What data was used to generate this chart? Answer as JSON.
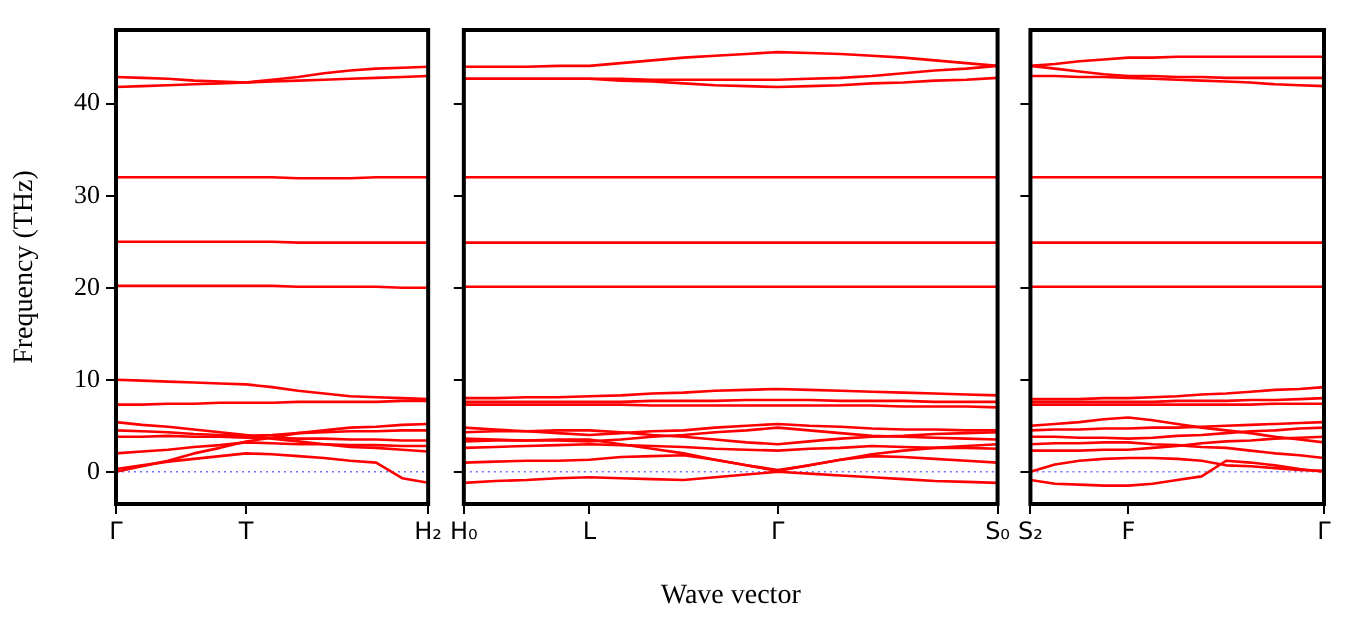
{
  "chart_data": [
    {
      "type": "line",
      "ylabel": "Frequency (THz)",
      "categories": [
        "Γ",
        null,
        null,
        null,
        null,
        "T",
        null,
        null,
        null,
        null,
        null,
        null,
        "H₂"
      ],
      "ylim": [
        -3.5,
        48
      ],
      "yticks": [
        0,
        10,
        20,
        30,
        40
      ],
      "marker": "none",
      "ref_lines": [
        {
          "axis": "y",
          "value": 0,
          "label": null,
          "color": "#6f6fff",
          "line_style": "dotted"
        }
      ],
      "series": [
        {
          "color": "#ff0000",
          "values": [
            42.9,
            42.8,
            42.7,
            42.5,
            42.4,
            42.3,
            42.6,
            42.9,
            43.3,
            43.6,
            43.8,
            43.9,
            44.0
          ]
        },
        {
          "color": "#ff0000",
          "values": [
            41.8,
            41.9,
            42.0,
            42.1,
            42.2,
            42.3,
            42.4,
            42.5,
            42.6,
            42.7,
            42.8,
            42.9,
            43.0
          ]
        },
        {
          "color": "#ff0000",
          "values": [
            32,
            32,
            32,
            32,
            32,
            32,
            32,
            31.9,
            31.9,
            31.9,
            32,
            32,
            32
          ]
        },
        {
          "color": "#ff0000",
          "values": [
            25,
            25,
            25,
            25,
            25,
            25,
            25,
            24.9,
            24.9,
            24.9,
            24.9,
            24.9,
            24.9
          ]
        },
        {
          "color": "#ff0000",
          "values": [
            20.2,
            20.2,
            20.2,
            20.2,
            20.2,
            20.2,
            20.2,
            20.1,
            20.1,
            20.1,
            20.1,
            20.0,
            20.0
          ]
        },
        {
          "color": "#ff0000",
          "values": [
            10,
            9.9,
            9.8,
            9.7,
            9.6,
            9.5,
            9.2,
            8.8,
            8.5,
            8.2,
            8.1,
            8.0,
            7.9
          ]
        },
        {
          "color": "#ff0000",
          "values": [
            7.3,
            7.3,
            7.4,
            7.4,
            7.5,
            7.5,
            7.5,
            7.6,
            7.6,
            7.6,
            7.6,
            7.7,
            7.7
          ]
        },
        {
          "color": "#ff0000",
          "values": [
            0,
            0.6,
            1.2,
            2.0,
            2.6,
            3.3,
            3.7,
            4.2,
            4.5,
            4.8,
            4.9,
            5.1,
            5.2
          ]
        },
        {
          "color": "#ff0000",
          "values": [
            5.4,
            5.1,
            4.9,
            4.6,
            4.3,
            4.0,
            3.6,
            3.3,
            3.0,
            2.7,
            2.6,
            2.4,
            2.2
          ]
        },
        {
          "color": "#ff0000",
          "values": [
            4.5,
            4.4,
            4.3,
            4.1,
            4.0,
            3.9,
            4.0,
            4.2,
            4.3,
            4.4,
            4.4,
            4.5,
            4.5
          ]
        },
        {
          "color": "#ff0000",
          "values": [
            3.8,
            3.8,
            3.9,
            3.8,
            3.8,
            3.7,
            3.7,
            3.6,
            3.6,
            3.5,
            3.5,
            3.4,
            3.4
          ]
        },
        {
          "color": "#ff0000",
          "values": [
            2.0,
            2.2,
            2.4,
            2.7,
            2.9,
            3.2,
            3.1,
            3.0,
            3.0,
            2.9,
            2.9,
            2.8,
            2.8
          ]
        },
        {
          "color": "#ff0000",
          "values": [
            0.3,
            0.7,
            1.1,
            1.4,
            1.7,
            2.0,
            1.9,
            1.7,
            1.5,
            1.2,
            1.0,
            -0.7,
            -1.2
          ]
        }
      ]
    },
    {
      "type": "line",
      "xlabel": "Wave vector",
      "categories": [
        "H₀",
        null,
        null,
        null,
        "L",
        null,
        null,
        null,
        null,
        null,
        "Γ",
        null,
        null,
        null,
        null,
        null,
        null,
        "S₀"
      ],
      "ylim": [
        -3.5,
        48
      ],
      "yticks": [
        0,
        10,
        20,
        30,
        40
      ],
      "tick_labels": "x",
      "marker": "none",
      "ref_lines": [
        {
          "axis": "y",
          "value": 0,
          "label": null,
          "color": "#6f6fff",
          "line_style": "dotted"
        }
      ],
      "series": [
        {
          "color": "#ff0000",
          "values": [
            44.0,
            44.0,
            44.0,
            44.1,
            44.1,
            44.4,
            44.7,
            45.0,
            45.2,
            45.4,
            45.6,
            45.5,
            45.4,
            45.2,
            45.0,
            44.7,
            44.4,
            44.1
          ]
        },
        {
          "color": "#ff0000",
          "values": [
            42.7,
            42.7,
            42.7,
            42.7,
            42.7,
            42.7,
            42.6,
            42.6,
            42.6,
            42.6,
            42.6,
            42.7,
            42.8,
            43.0,
            43.3,
            43.6,
            43.8,
            44.1
          ]
        },
        {
          "color": "#ff0000",
          "values": [
            42.7,
            42.7,
            42.7,
            42.7,
            42.7,
            42.5,
            42.4,
            42.2,
            42.0,
            41.9,
            41.8,
            41.9,
            42.0,
            42.2,
            42.3,
            42.5,
            42.6,
            42.8
          ]
        },
        {
          "color": "#ff0000",
          "values": [
            32,
            32,
            32,
            32,
            32,
            32,
            32,
            32,
            32,
            32,
            32,
            32,
            32,
            32,
            32,
            32,
            32,
            32
          ]
        },
        {
          "color": "#ff0000",
          "values": [
            24.9,
            24.9,
            24.9,
            24.9,
            24.9,
            24.9,
            24.9,
            24.9,
            24.9,
            24.9,
            24.9,
            24.9,
            24.9,
            24.9,
            24.9,
            24.9,
            24.9,
            24.9
          ]
        },
        {
          "color": "#ff0000",
          "values": [
            20.1,
            20.1,
            20.1,
            20.1,
            20.1,
            20.1,
            20.1,
            20.1,
            20.1,
            20.1,
            20.1,
            20.1,
            20.1,
            20.1,
            20.1,
            20.1,
            20.1,
            20.1
          ]
        },
        {
          "color": "#ff0000",
          "values": [
            8.0,
            8.0,
            8.1,
            8.1,
            8.2,
            8.3,
            8.5,
            8.6,
            8.8,
            8.9,
            9.0,
            8.9,
            8.8,
            8.7,
            8.6,
            8.5,
            8.4,
            8.3
          ]
        },
        {
          "color": "#ff0000",
          "values": [
            7.6,
            7.6,
            7.6,
            7.6,
            7.6,
            7.6,
            7.7,
            7.7,
            7.7,
            7.8,
            7.8,
            7.8,
            7.7,
            7.7,
            7.7,
            7.6,
            7.6,
            7.6
          ]
        },
        {
          "color": "#ff0000",
          "values": [
            7.3,
            7.3,
            7.3,
            7.3,
            7.3,
            7.3,
            7.2,
            7.2,
            7.2,
            7.2,
            7.2,
            7.2,
            7.2,
            7.2,
            7.1,
            7.1,
            7.1,
            7.0
          ]
        },
        {
          "color": "#ff0000",
          "values": [
            -1.2,
            -1.0,
            -0.9,
            -0.7,
            -0.6,
            -0.7,
            -0.8,
            -0.9,
            -0.6,
            -0.3,
            0,
            -0.2,
            -0.4,
            -0.6,
            -0.8,
            -1.0,
            -1.1,
            -1.2
          ]
        },
        {
          "color": "#ff0000",
          "values": [
            1.0,
            1.1,
            1.2,
            1.2,
            1.3,
            1.6,
            1.7,
            1.8,
            1.3,
            0.7,
            0.1,
            0.7,
            1.3,
            1.7,
            1.6,
            1.4,
            1.2,
            1.0
          ]
        },
        {
          "color": "#ff0000",
          "values": [
            3.3,
            3.4,
            3.4,
            3.5,
            3.5,
            3.0,
            2.5,
            2.0,
            1.3,
            0.7,
            0.2,
            0.7,
            1.3,
            1.9,
            2.3,
            2.6,
            2.8,
            3.0
          ]
        },
        {
          "color": "#ff0000",
          "values": [
            4.8,
            4.6,
            4.4,
            4.2,
            4.0,
            4.2,
            4.4,
            4.5,
            4.8,
            5.0,
            5.2,
            5.0,
            4.9,
            4.7,
            4.6,
            4.6,
            4.5,
            4.5
          ]
        },
        {
          "color": "#ff0000",
          "values": [
            4.3,
            4.4,
            4.4,
            4.5,
            4.5,
            4.3,
            4.0,
            3.8,
            3.5,
            3.2,
            3.0,
            3.3,
            3.6,
            3.8,
            3.9,
            4.1,
            4.2,
            4.3
          ]
        },
        {
          "color": "#ff0000",
          "values": [
            3.6,
            3.5,
            3.4,
            3.4,
            3.3,
            3.5,
            3.8,
            4.0,
            4.3,
            4.5,
            4.8,
            4.5,
            4.2,
            3.9,
            3.8,
            3.7,
            3.6,
            3.5
          ]
        },
        {
          "color": "#ff0000",
          "values": [
            2.6,
            2.7,
            2.8,
            2.9,
            3.0,
            2.9,
            2.8,
            2.7,
            2.5,
            2.4,
            2.3,
            2.5,
            2.6,
            2.8,
            2.7,
            2.6,
            2.6,
            2.5
          ]
        }
      ]
    },
    {
      "type": "line",
      "categories": [
        "S₂",
        null,
        null,
        null,
        "F",
        null,
        null,
        null,
        null,
        null,
        null,
        null,
        "Γ"
      ],
      "ylim": [
        -3.5,
        48
      ],
      "yticks": [
        0,
        10,
        20,
        30,
        40
      ],
      "tick_labels": "x",
      "marker": "none",
      "ref_lines": [
        {
          "axis": "y",
          "value": 0,
          "label": null,
          "color": "#6f6fff",
          "line_style": "dotted"
        }
      ],
      "series": [
        {
          "color": "#ff0000",
          "values": [
            44.1,
            44.3,
            44.6,
            44.8,
            45.0,
            45.0,
            45.1,
            45.1,
            45.1,
            45.1,
            45.1,
            45.1,
            45.1
          ]
        },
        {
          "color": "#ff0000",
          "values": [
            44.1,
            43.8,
            43.5,
            43.2,
            43.0,
            43.0,
            42.9,
            42.9,
            42.8,
            42.8,
            42.8,
            42.8,
            42.8
          ]
        },
        {
          "color": "#ff0000",
          "values": [
            43.0,
            43.0,
            42.9,
            42.9,
            42.8,
            42.7,
            42.6,
            42.5,
            42.4,
            42.3,
            42.1,
            42.0,
            41.9
          ]
        },
        {
          "color": "#ff0000",
          "values": [
            32,
            32,
            32,
            32,
            32,
            32,
            32,
            32,
            32,
            32,
            32,
            32,
            32
          ]
        },
        {
          "color": "#ff0000",
          "values": [
            24.9,
            24.9,
            24.9,
            24.9,
            24.9,
            24.9,
            24.9,
            24.9,
            24.9,
            24.9,
            24.9,
            24.9,
            24.9
          ]
        },
        {
          "color": "#ff0000",
          "values": [
            20.1,
            20.1,
            20.1,
            20.1,
            20.1,
            20.1,
            20.1,
            20.1,
            20.1,
            20.1,
            20.1,
            20.1,
            20.1
          ]
        },
        {
          "color": "#ff0000",
          "values": [
            7.9,
            7.9,
            7.9,
            8.0,
            8.0,
            8.1,
            8.2,
            8.4,
            8.5,
            8.7,
            8.9,
            9.0,
            9.2
          ]
        },
        {
          "color": "#ff0000",
          "values": [
            7.6,
            7.6,
            7.6,
            7.6,
            7.6,
            7.6,
            7.7,
            7.7,
            7.7,
            7.8,
            7.8,
            7.9,
            8.0
          ]
        },
        {
          "color": "#ff0000",
          "values": [
            7.3,
            7.3,
            7.3,
            7.3,
            7.3,
            7.3,
            7.3,
            7.3,
            7.3,
            7.3,
            7.4,
            7.4,
            7.4
          ]
        },
        {
          "color": "#ff0000",
          "values": [
            -0.9,
            -1.3,
            -1.4,
            -1.5,
            -1.5,
            -1.3,
            -0.9,
            -0.5,
            1.2,
            1.0,
            0.7,
            0.3,
            0.0
          ]
        },
        {
          "color": "#ff0000",
          "values": [
            0.0,
            0.8,
            1.2,
            1.4,
            1.5,
            1.5,
            1.4,
            1.2,
            0.7,
            0.6,
            0.4,
            0.2,
            0.1
          ]
        },
        {
          "color": "#ff0000",
          "values": [
            5.0,
            5.2,
            5.4,
            5.7,
            5.9,
            5.6,
            5.2,
            4.8,
            4.5,
            4.2,
            3.8,
            3.5,
            3.2
          ]
        },
        {
          "color": "#ff0000",
          "values": [
            4.5,
            4.6,
            4.6,
            4.7,
            4.7,
            4.8,
            4.8,
            4.9,
            5.0,
            5.1,
            5.2,
            5.3,
            5.4
          ]
        },
        {
          "color": "#ff0000",
          "values": [
            3.8,
            3.8,
            3.7,
            3.7,
            3.6,
            3.7,
            3.9,
            4.0,
            4.2,
            4.4,
            4.5,
            4.7,
            4.8
          ]
        },
        {
          "color": "#ff0000",
          "values": [
            3.0,
            3.1,
            3.1,
            3.2,
            3.2,
            3.0,
            2.9,
            2.7,
            2.6,
            2.3,
            2.0,
            1.8,
            1.5
          ]
        },
        {
          "color": "#ff0000",
          "values": [
            2.3,
            2.3,
            2.3,
            2.4,
            2.4,
            2.6,
            2.8,
            3.1,
            3.3,
            3.4,
            3.6,
            3.7,
            3.8
          ]
        }
      ]
    }
  ]
}
